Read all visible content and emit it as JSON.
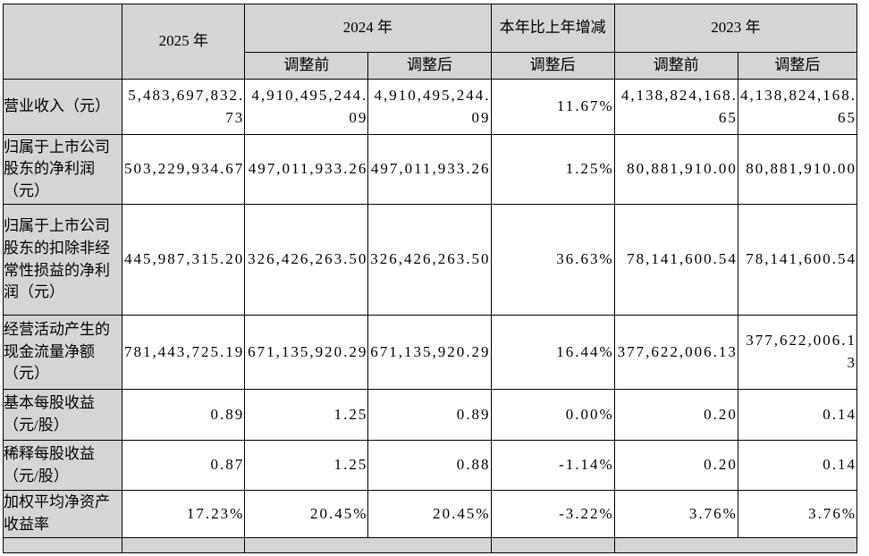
{
  "style": {
    "header_bg": "#d5d5d5",
    "border_color": "#000000",
    "page_bg": "#ffffff"
  },
  "table": {
    "header": {
      "blank": "",
      "y2025": "2025 年",
      "y2024": "2024 年",
      "change": "本年比上年增减",
      "y2023": "2023 年",
      "sub": [
        "调整前",
        "调整后",
        "调整后",
        "调整前",
        "调整后"
      ]
    },
    "rows": [
      {
        "label": "营业收入（元）",
        "cells": [
          "5,483,697,832.73",
          "4,910,495,244.09",
          "4,910,495,244.09",
          "11.67%",
          "4,138,824,168.65",
          "4,138,824,168.65"
        ]
      },
      {
        "label": "归属于上市公司股东的净利润（元）",
        "cells": [
          "503,229,934.67",
          "497,011,933.26",
          "497,011,933.26",
          "1.25%",
          "80,881,910.00",
          "80,881,910.00"
        ]
      },
      {
        "label": "归属于上市公司股东的扣除非经常性损益的净利润（元）",
        "cells": [
          "445,987,315.20",
          "326,426,263.50",
          "326,426,263.50",
          "36.63%",
          "78,141,600.54",
          "78,141,600.54"
        ]
      },
      {
        "label": "经营活动产生的现金流量净额（元）",
        "cells": [
          "781,443,725.19",
          "671,135,920.29",
          "671,135,920.29",
          "16.44%",
          "377,622,006.13",
          "377,622,006.13"
        ]
      },
      {
        "label": "基本每股收益（元/股）",
        "cells": [
          "0.89",
          "1.25",
          "0.89",
          "0.00%",
          "0.20",
          "0.14"
        ]
      },
      {
        "label": "稀释每股收益（元/股）",
        "cells": [
          "0.87",
          "1.25",
          "0.88",
          "-1.14%",
          "0.20",
          "0.14"
        ]
      },
      {
        "label": "加权平均净资产收益率",
        "cells": [
          "17.23%",
          "20.45%",
          "20.45%",
          "-3.22%",
          "3.76%",
          "3.76%"
        ]
      }
    ],
    "partial_row": {
      "cells": [
        "",
        "",
        "",
        "",
        ""
      ]
    }
  }
}
